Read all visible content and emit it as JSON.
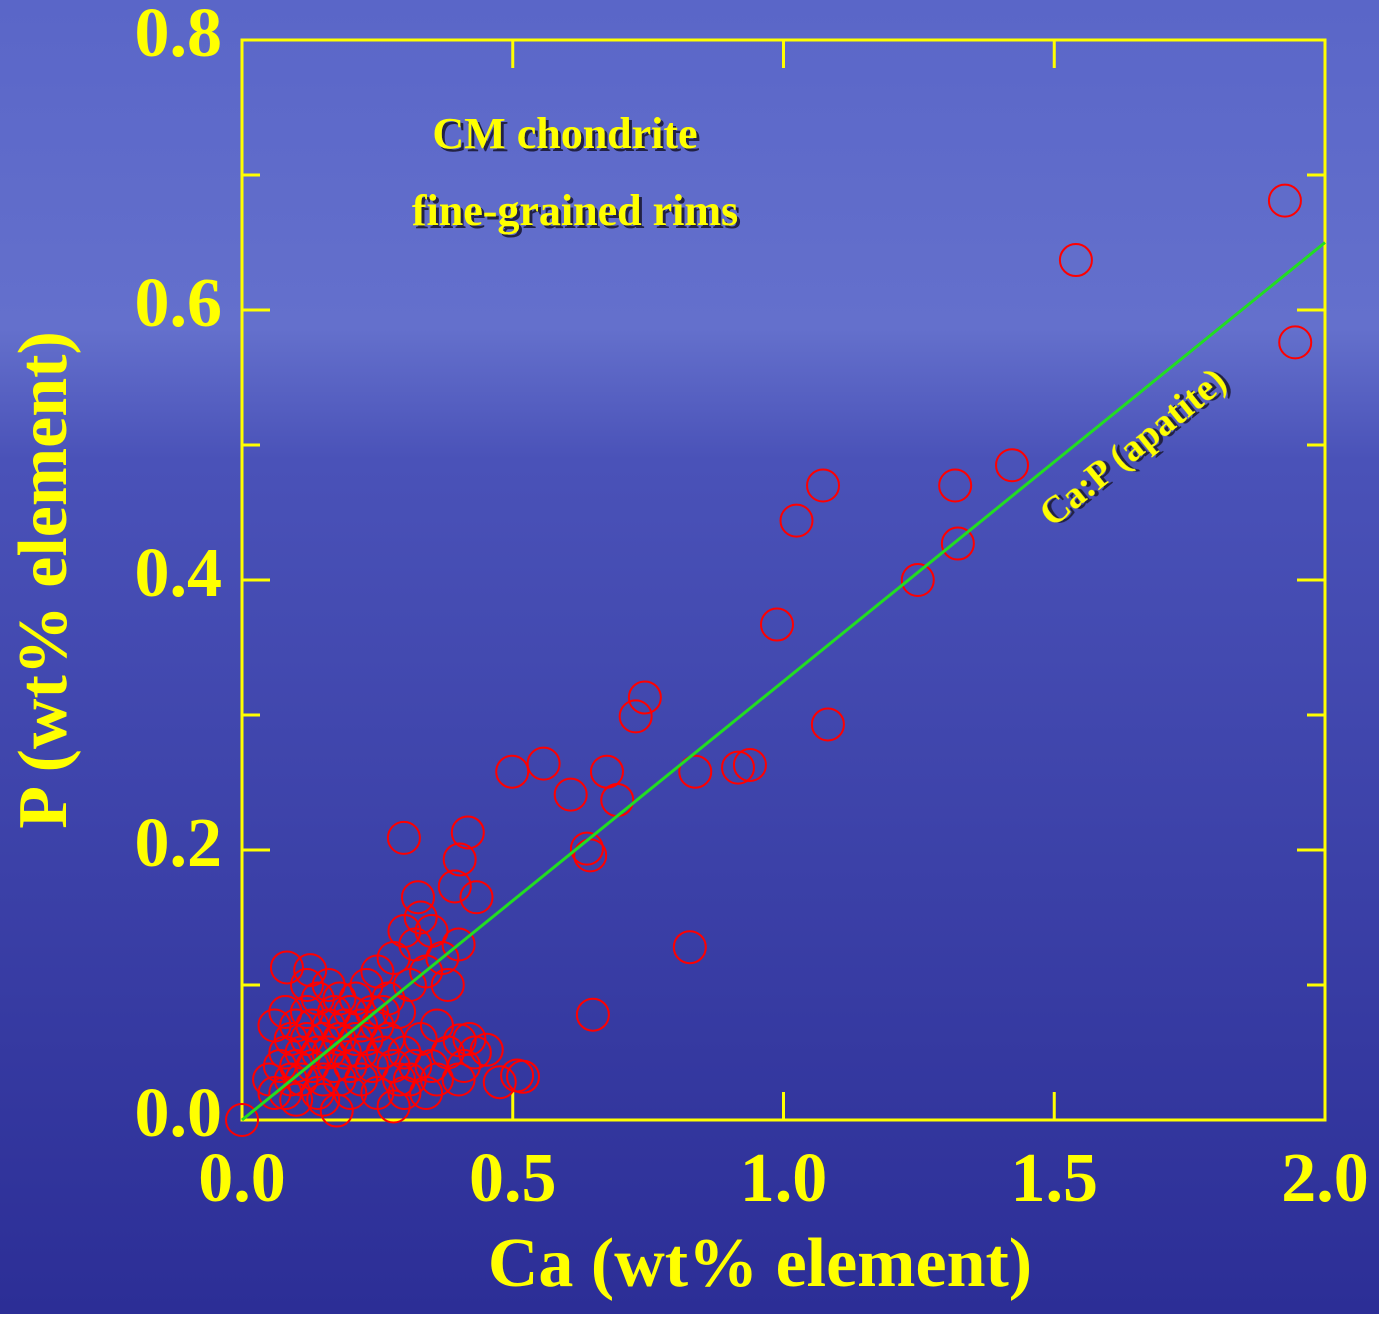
{
  "chart_data": {
    "type": "scatter",
    "xlabel": "Ca (wt% element)",
    "ylabel": "P (wt% element)",
    "annotations": [
      "CM chondrite",
      "fine-grained rims"
    ],
    "line_label": "Ca:P (apatite)",
    "xlim": [
      0,
      2.0
    ],
    "ylim": [
      0,
      0.8
    ],
    "xticks": [
      {
        "value": 0,
        "label": "0.0"
      },
      {
        "value": 0.5,
        "label": "0.5"
      },
      {
        "value": 1.0,
        "label": "1.0"
      },
      {
        "value": 1.5,
        "label": "1.5"
      },
      {
        "value": 2.0,
        "label": "2.0"
      }
    ],
    "yticks": [
      {
        "value": 0,
        "label": "0.0"
      },
      {
        "value": 0.2,
        "label": "0.2"
      },
      {
        "value": 0.4,
        "label": "0.4"
      },
      {
        "value": 0.6,
        "label": "0.6"
      },
      {
        "value": 0.8,
        "label": "0.8"
      }
    ],
    "yminorticks": [
      0.1,
      0.3,
      0.5,
      0.7
    ],
    "color": "#ff0000",
    "x": [
      1.926,
      1.54,
      1.945,
      1.422,
      1.317,
      1.322,
      1.248,
      1.073,
      1.024,
      0.988,
      1.082,
      0.744,
      0.727,
      0.557,
      0.499,
      0.674,
      0.607,
      0.693,
      0.837,
      0.916,
      0.938,
      0.637,
      0.643,
      0.827,
      0.648,
      0.299,
      0.417,
      0.402,
      0.393,
      0.433,
      0.325,
      0.519,
      0.508,
      0.476,
      0.452,
      0.402,
      0,
      0.175,
      0.083,
      0.126,
      0.05,
      0.06,
      0.07,
      0.08,
      0.08,
      0.09,
      0.1,
      0.1,
      0.11,
      0.11,
      0.12,
      0.12,
      0.13,
      0.13,
      0.14,
      0.14,
      0.15,
      0.15,
      0.16,
      0.16,
      0.17,
      0.17,
      0.18,
      0.18,
      0.19,
      0.19,
      0.2,
      0.2,
      0.21,
      0.21,
      0.22,
      0.22,
      0.23,
      0.23,
      0.24,
      0.24,
      0.25,
      0.25,
      0.26,
      0.27,
      0.27,
      0.28,
      0.28,
      0.29,
      0.3,
      0.3,
      0.31,
      0.31,
      0.32,
      0.33,
      0.33,
      0.34,
      0.35,
      0.35,
      0.36,
      0.37,
      0.38,
      0.38,
      0.4,
      0.41,
      0.42,
      0.43,
      0.3,
      0.28,
      0.25,
      0.2,
      0.15,
      0.1,
      0.06,
      0.08,
      0.09,
      0.12,
      0.14,
      0.16,
      0.18,
      0.22,
      0.26,
      0.29,
      0.32,
      0.36,
      0.34,
      0.4
    ],
    "y": [
      0.681,
      0.637,
      0.576,
      0.485,
      0.47,
      0.427,
      0.4,
      0.47,
      0.444,
      0.367,
      0.293,
      0.313,
      0.299,
      0.264,
      0.258,
      0.258,
      0.241,
      0.237,
      0.258,
      0.261,
      0.263,
      0.201,
      0.196,
      0.128,
      0.078,
      0.209,
      0.213,
      0.193,
      0.173,
      0.165,
      0.165,
      0.032,
      0.033,
      0.028,
      0.052,
      0.059,
      0,
      0.007,
      0.113,
      0.111,
      0.03,
      0.02,
      0.04,
      0.05,
      0.02,
      0.06,
      0.04,
      0.07,
      0.03,
      0.05,
      0.08,
      0.06,
      0.04,
      0.07,
      0.05,
      0.09,
      0.06,
      0.03,
      0.07,
      0.05,
      0.08,
      0.04,
      0.06,
      0.09,
      0.05,
      0.07,
      0.08,
      0.04,
      0.06,
      0.09,
      0.07,
      0.05,
      0.1,
      0.06,
      0.08,
      0.04,
      0.07,
      0.11,
      0.05,
      0.09,
      0.06,
      0.12,
      0.04,
      0.08,
      0.14,
      0.05,
      0.1,
      0.03,
      0.13,
      0.06,
      0.15,
      0.11,
      0.04,
      0.14,
      0.07,
      0.12,
      0.1,
      0.05,
      0.13,
      0.04,
      0.06,
      0.05,
      0.02,
      0.01,
      0.02,
      0.02,
      0.015,
      0.015,
      0.07,
      0.08,
      0.03,
      0.1,
      0.02,
      0.1,
      0.03,
      0.03,
      0.08,
      0.03,
      0.04,
      0.03,
      0.02,
      0.03
    ],
    "line": {
      "x": [
        0,
        2.0
      ],
      "y": [
        0,
        0.65
      ],
      "color": "#22dd22"
    }
  }
}
